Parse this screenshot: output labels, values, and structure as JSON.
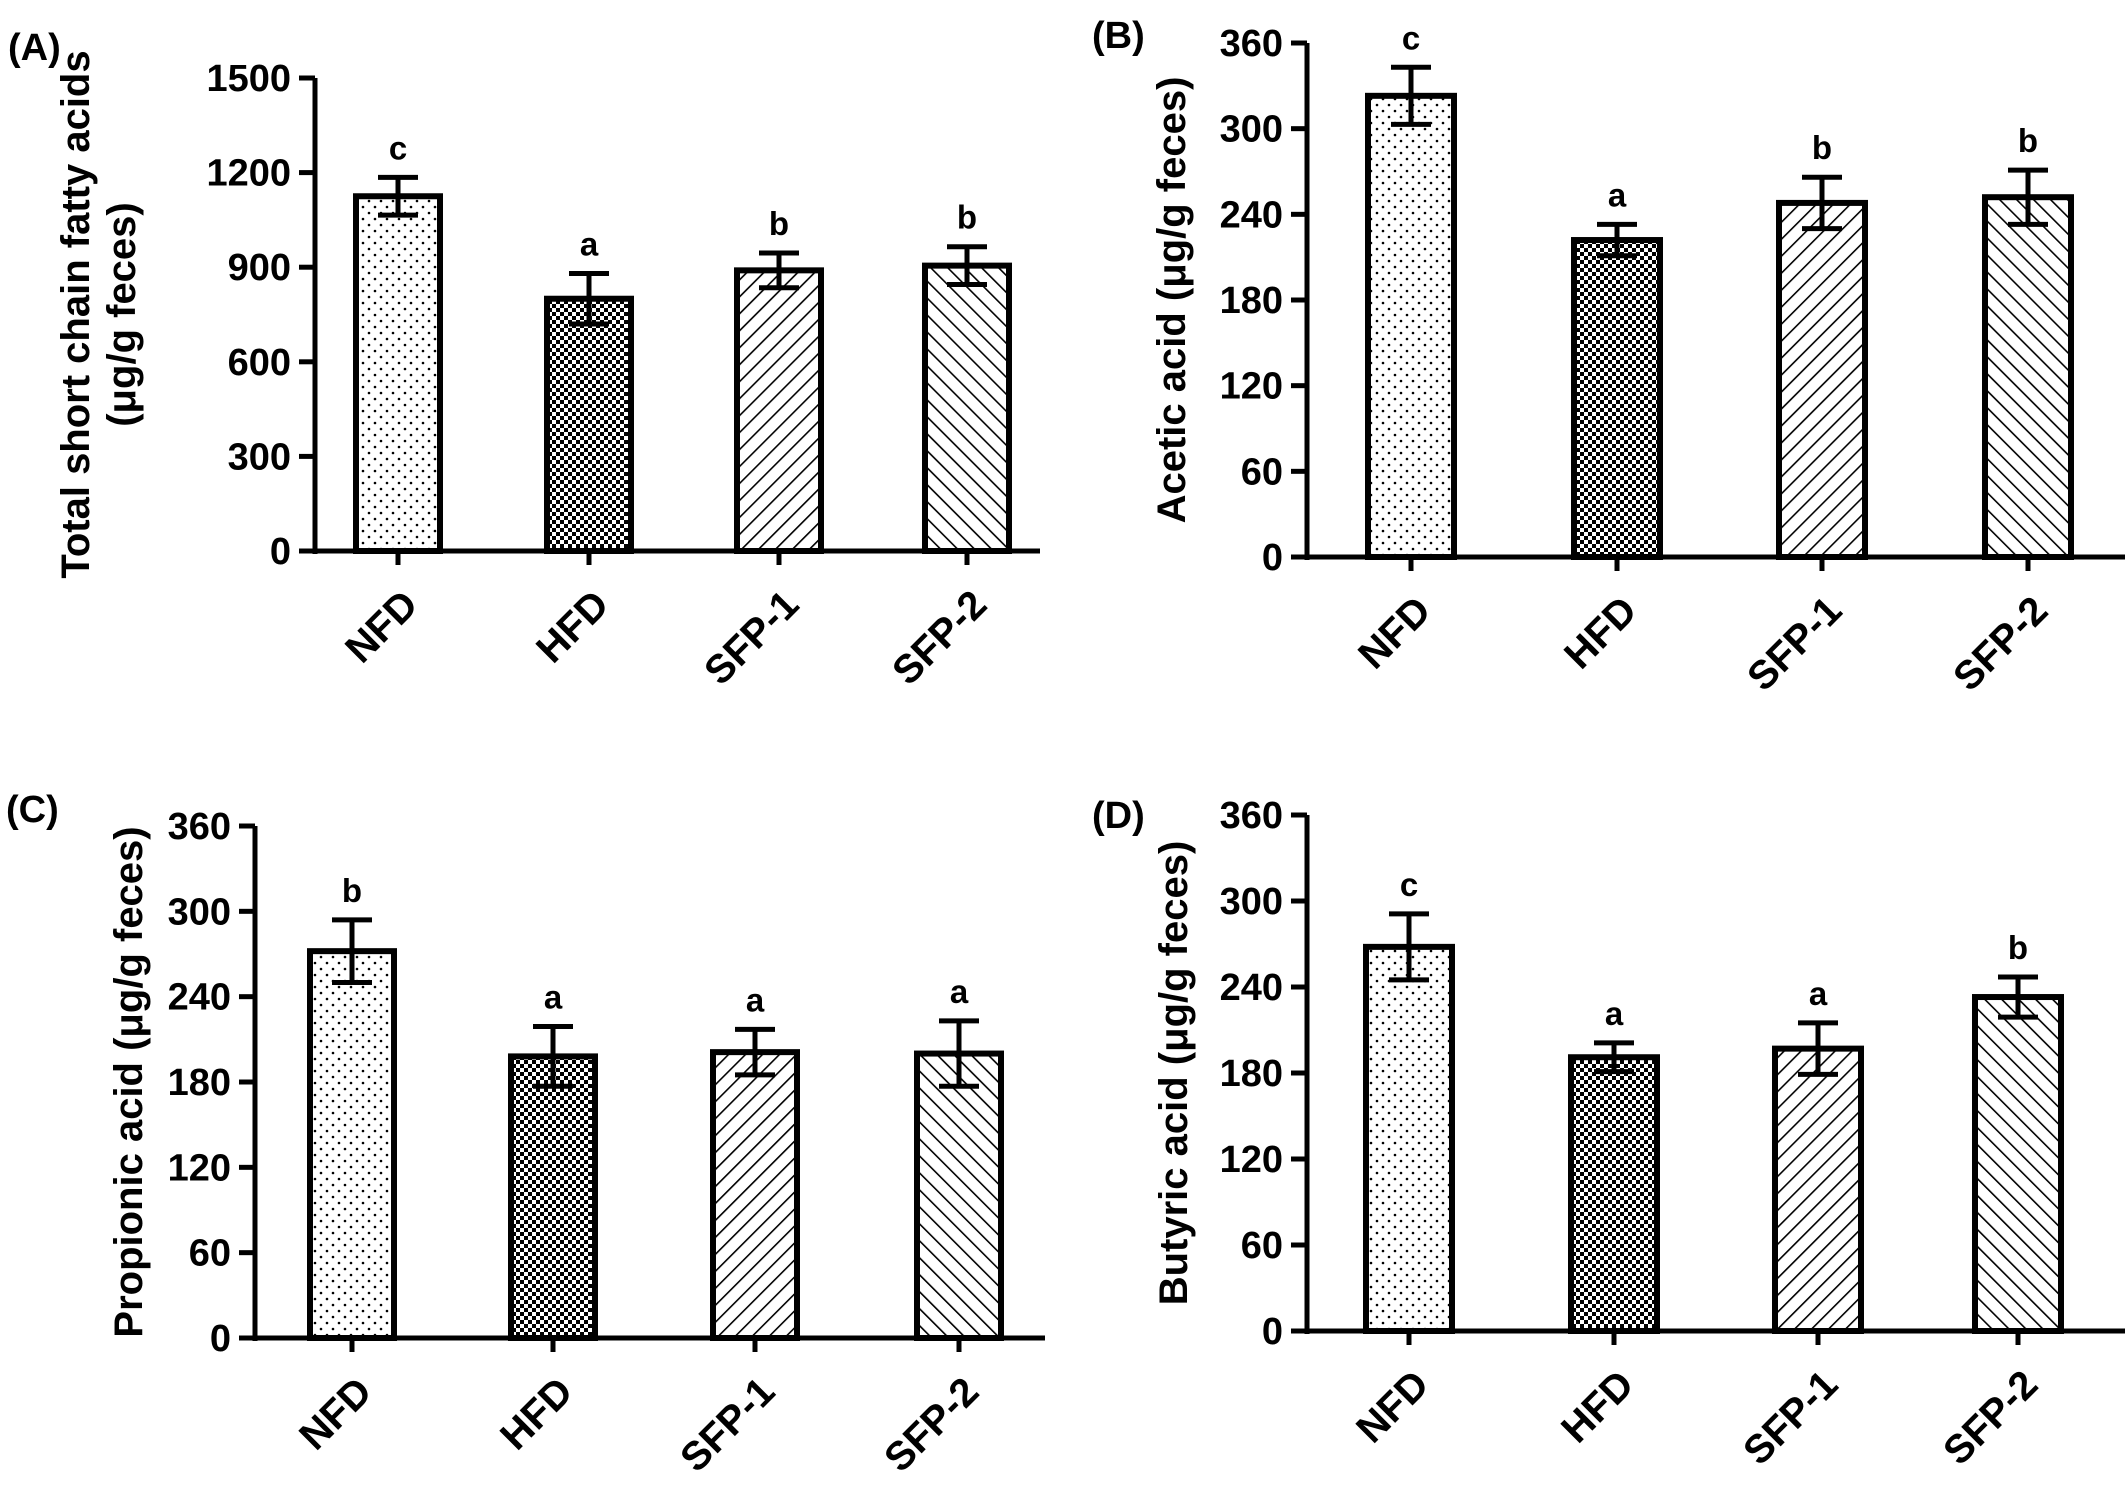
{
  "colors": {
    "ink": "#000000",
    "bar_fill": "#ffffff",
    "pattern_ink": "#000000"
  },
  "chart_data": [
    {
      "type": "bar",
      "panel_label": "(A)",
      "title": "",
      "xlabel": "",
      "ylabel": [
        "Total short chain fatty acids",
        "(μg/g feces)"
      ],
      "ylim": [
        0,
        1500
      ],
      "yticks": [
        0,
        300,
        600,
        900,
        1200,
        1500
      ],
      "yticklabels": [
        "0",
        "300",
        "600",
        "900",
        "1200",
        "1500"
      ],
      "categories": [
        "NFD",
        "HFD",
        "SFP-1",
        "SFP-2"
      ],
      "values": [
        1125,
        800,
        890,
        905
      ],
      "errors": [
        60,
        80,
        55,
        60
      ],
      "significance": [
        "c",
        "a",
        "b",
        "b"
      ],
      "patterns": [
        "dots",
        "checker",
        "hatch-right",
        "hatch-left"
      ],
      "grid": false,
      "legend": "none"
    },
    {
      "type": "bar",
      "panel_label": "(B)",
      "title": "",
      "xlabel": "",
      "ylabel": [
        "Acetic acid (μg/g feces)"
      ],
      "ylim": [
        0,
        360
      ],
      "yticks": [
        0,
        60,
        120,
        180,
        240,
        300,
        360
      ],
      "yticklabels": [
        "0",
        "60",
        "120",
        "180",
        "240",
        "300",
        "360"
      ],
      "categories": [
        "NFD",
        "HFD",
        "SFP-1",
        "SFP-2"
      ],
      "values": [
        323,
        222,
        248,
        252
      ],
      "errors": [
        20,
        11,
        18,
        19
      ],
      "significance": [
        "c",
        "a",
        "b",
        "b"
      ],
      "patterns": [
        "dots",
        "checker",
        "hatch-right",
        "hatch-left"
      ],
      "grid": false,
      "legend": "none"
    },
    {
      "type": "bar",
      "panel_label": "(C)",
      "title": "",
      "xlabel": "",
      "ylabel": [
        "Propionic acid (μg/g feces)"
      ],
      "ylim": [
        0,
        360
      ],
      "yticks": [
        0,
        60,
        120,
        180,
        240,
        300,
        360
      ],
      "yticklabels": [
        "0",
        "60",
        "120",
        "180",
        "240",
        "300",
        "360"
      ],
      "categories": [
        "NFD",
        "HFD",
        "SFP-1",
        "SFP-2"
      ],
      "values": [
        272,
        198,
        201,
        200
      ],
      "errors": [
        22,
        21,
        16,
        23
      ],
      "significance": [
        "b",
        "a",
        "a",
        "a"
      ],
      "patterns": [
        "dots",
        "checker",
        "hatch-right",
        "hatch-left"
      ],
      "grid": false,
      "legend": "none"
    },
    {
      "type": "bar",
      "panel_label": "(D)",
      "title": "",
      "xlabel": "",
      "ylabel": [
        "Butyric acid (μg/g feces)"
      ],
      "ylim": [
        0,
        360
      ],
      "yticks": [
        0,
        60,
        120,
        180,
        240,
        300,
        360
      ],
      "yticklabels": [
        "0",
        "60",
        "120",
        "180",
        "240",
        "300",
        "360"
      ],
      "categories": [
        "NFD",
        "HFD",
        "SFP-1",
        "SFP-2"
      ],
      "values": [
        268,
        191,
        197,
        233
      ],
      "errors": [
        23,
        10,
        18,
        14
      ],
      "significance": [
        "c",
        "a",
        "a",
        "b"
      ],
      "patterns": [
        "dots",
        "checker",
        "hatch-right",
        "hatch-left"
      ],
      "grid": false,
      "legend": "none"
    }
  ]
}
